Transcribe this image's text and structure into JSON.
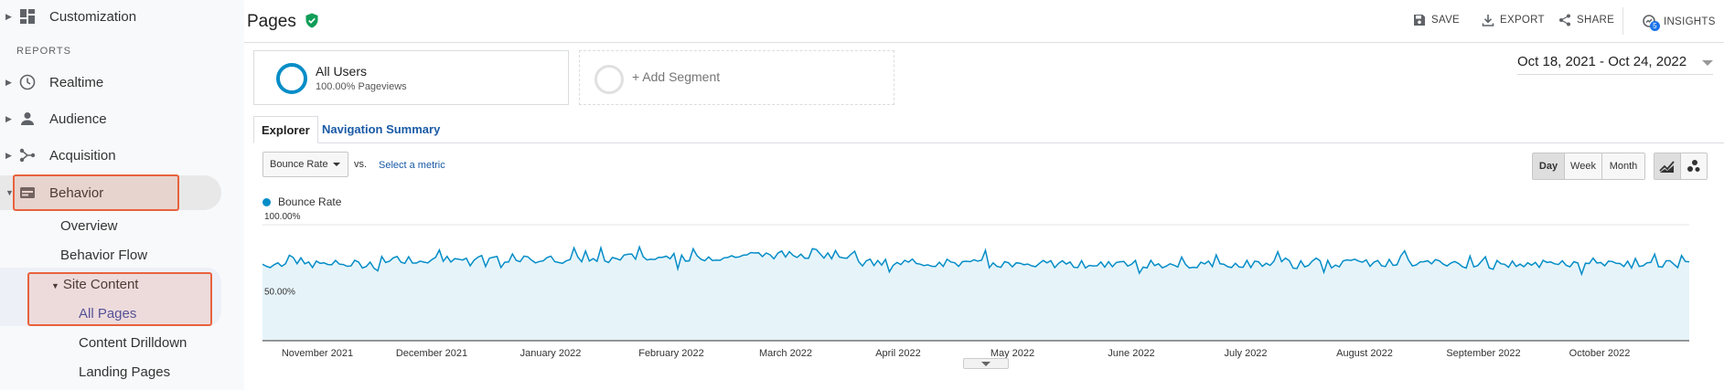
{
  "sidebar": {
    "customization": "Customization",
    "reports_label": "REPORTS",
    "realtime": "Realtime",
    "audience": "Audience",
    "acquisition": "Acquisition",
    "behavior": "Behavior",
    "overview": "Overview",
    "behavior_flow": "Behavior Flow",
    "site_content": "Site Content",
    "all_pages": "All Pages",
    "content_drilldown": "Content Drilldown",
    "landing_pages": "Landing Pages"
  },
  "header": {
    "title": "Pages",
    "save": "SAVE",
    "export": "EXPORT",
    "share": "SHARE",
    "insights": "INSIGHTS",
    "insights_badge": "5"
  },
  "segments": {
    "all_users": "All Users",
    "all_users_sub": "100.00% Pageviews",
    "add_segment": "+ Add Segment"
  },
  "date_range": "Oct 18, 2021 - Oct 24, 2022",
  "tabs": {
    "explorer": "Explorer",
    "navigation_summary": "Navigation Summary"
  },
  "controls": {
    "metric": "Bounce Rate",
    "vs": "vs.",
    "select_metric": "Select a metric",
    "day": "Day",
    "week": "Week",
    "month": "Month"
  },
  "colors": {
    "accent": "#058dc7",
    "highlight": "#e8623d",
    "link": "#1a5aa6"
  },
  "chart_data": {
    "type": "area",
    "series": [
      {
        "name": "Bounce Rate",
        "values": []
      }
    ],
    "y_ticks": [
      "100.00%",
      "50.00%"
    ],
    "ylim": [
      0,
      100
    ],
    "x_labels": [
      "November 2021",
      "December 2021",
      "January 2022",
      "February 2022",
      "March 2022",
      "April 2022",
      "May 2022",
      "June 2022",
      "July 2022",
      "August 2022",
      "September 2022",
      "October 2022"
    ],
    "monthly_levels": [
      66,
      70,
      70,
      72,
      74,
      67,
      66,
      66,
      66,
      67,
      66,
      66
    ]
  }
}
